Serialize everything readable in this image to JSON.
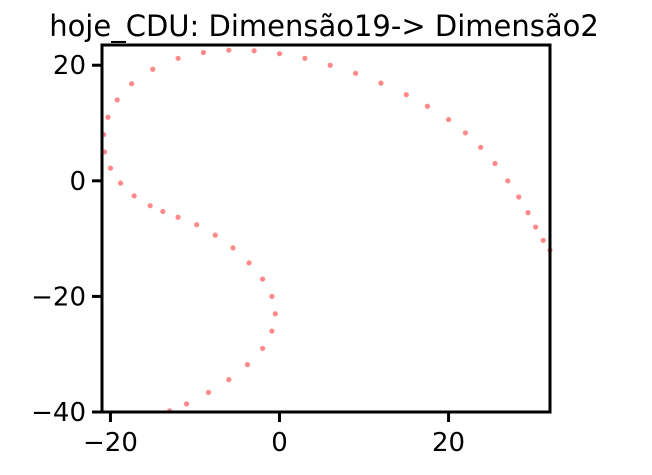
{
  "chart_data": {
    "type": "scatter",
    "title": "hoje_CDU: Dimensão19-> Dimensão2",
    "xlabel": "",
    "ylabel": "",
    "xlim": [
      -21,
      32
    ],
    "ylim": [
      -40,
      23.5
    ],
    "xticks": [
      {
        "value": -20,
        "label": "−20"
      },
      {
        "value": 0,
        "label": "0"
      },
      {
        "value": 20,
        "label": "20"
      }
    ],
    "yticks": [
      {
        "value": 20,
        "label": "20"
      },
      {
        "value": 0,
        "label": "0"
      },
      {
        "value": -20,
        "label": "−20"
      },
      {
        "value": -40,
        "label": "−40"
      }
    ],
    "grid": false,
    "legend": "none",
    "marker_color": "#ff3b3b",
    "points": [
      {
        "x": 32.0,
        "y": -12.0
      },
      {
        "x": 31.2,
        "y": -10.3
      },
      {
        "x": 30.3,
        "y": -8.0
      },
      {
        "x": 29.4,
        "y": -5.5
      },
      {
        "x": 28.3,
        "y": -2.8
      },
      {
        "x": 27.0,
        "y": 0.0
      },
      {
        "x": 25.5,
        "y": 3.0
      },
      {
        "x": 23.8,
        "y": 5.8
      },
      {
        "x": 22.0,
        "y": 8.3
      },
      {
        "x": 20.0,
        "y": 10.6
      },
      {
        "x": 17.5,
        "y": 12.9
      },
      {
        "x": 15.0,
        "y": 14.9
      },
      {
        "x": 12.0,
        "y": 16.9
      },
      {
        "x": 9.0,
        "y": 18.6
      },
      {
        "x": 6.0,
        "y": 20.0
      },
      {
        "x": 3.0,
        "y": 21.2
      },
      {
        "x": 0.0,
        "y": 22.0
      },
      {
        "x": -3.0,
        "y": 22.5
      },
      {
        "x": -6.0,
        "y": 22.6
      },
      {
        "x": -9.0,
        "y": 22.2
      },
      {
        "x": -12.0,
        "y": 21.2
      },
      {
        "x": -15.0,
        "y": 19.3
      },
      {
        "x": -17.5,
        "y": 16.8
      },
      {
        "x": -19.2,
        "y": 14.0
      },
      {
        "x": -20.3,
        "y": 11.0
      },
      {
        "x": -20.8,
        "y": 8.0
      },
      {
        "x": -20.7,
        "y": 5.0
      },
      {
        "x": -20.0,
        "y": 2.2
      },
      {
        "x": -18.8,
        "y": -0.4
      },
      {
        "x": -17.2,
        "y": -2.6
      },
      {
        "x": -15.3,
        "y": -4.3
      },
      {
        "x": -13.8,
        "y": -5.3
      },
      {
        "x": -12.0,
        "y": -6.3
      },
      {
        "x": -9.8,
        "y": -7.6
      },
      {
        "x": -7.6,
        "y": -9.4
      },
      {
        "x": -5.5,
        "y": -11.6
      },
      {
        "x": -3.6,
        "y": -14.2
      },
      {
        "x": -2.0,
        "y": -17.0
      },
      {
        "x": -0.9,
        "y": -20.0
      },
      {
        "x": -0.5,
        "y": -23.0
      },
      {
        "x": -0.9,
        "y": -26.0
      },
      {
        "x": -2.0,
        "y": -29.0
      },
      {
        "x": -3.8,
        "y": -31.8
      },
      {
        "x": -6.0,
        "y": -34.4
      },
      {
        "x": -8.4,
        "y": -36.6
      },
      {
        "x": -11.0,
        "y": -38.6
      },
      {
        "x": -13.0,
        "y": -39.8
      }
    ]
  }
}
